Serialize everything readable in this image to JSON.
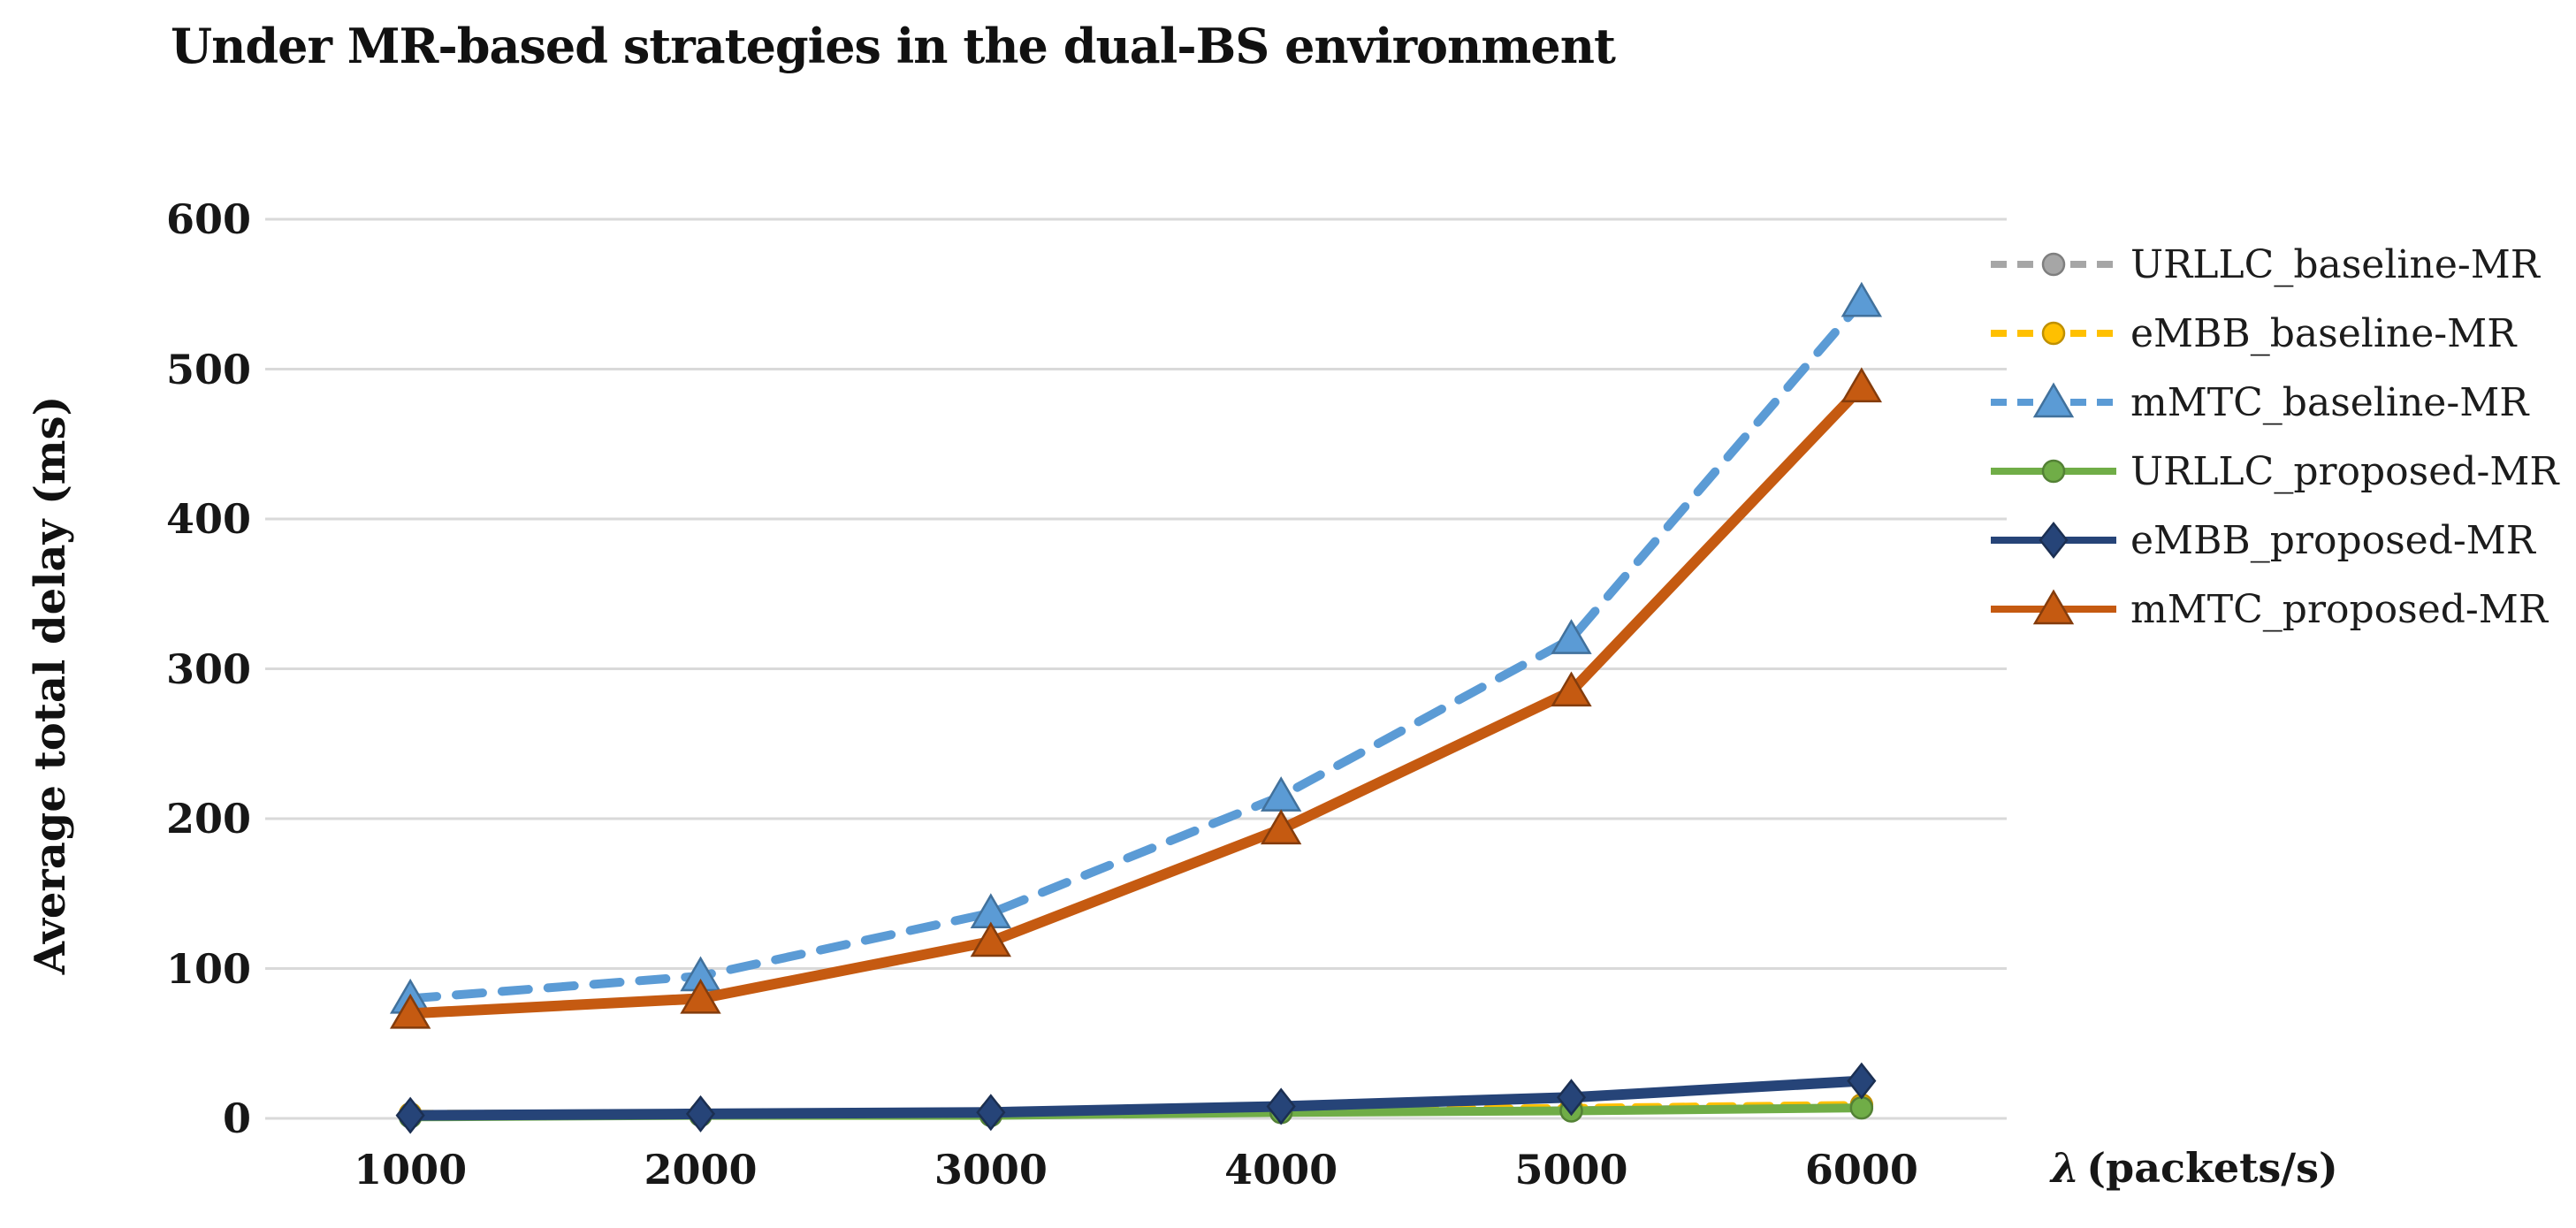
{
  "chart_data": {
    "type": "line",
    "title": "Under MR-based strategies in the dual-BS environment",
    "ylabel": "Average total delay (ms)",
    "xlabel_symbol": "λ",
    "xlabel_unit": "(packets/s)",
    "categories": [
      1000,
      2000,
      3000,
      4000,
      5000,
      6000
    ],
    "y_ticks": [
      0,
      100,
      200,
      300,
      400,
      500,
      600
    ],
    "ylim": [
      0,
      600
    ],
    "grid": "horizontal",
    "legend_position": "right",
    "colors": {
      "grid": "#d9d9d9",
      "text": "#171717",
      "background": "#ffffff"
    },
    "series": [
      {
        "name": "URLLC_baseline-MR",
        "color": "#a6a6a6",
        "marker_stroke": "#7f7f7f",
        "dashed": true,
        "marker": "circle",
        "values": [
          2,
          2,
          3,
          4,
          6,
          8
        ]
      },
      {
        "name": "eMBB_baseline-MR",
        "color": "#ffc000",
        "marker_stroke": "#bf9000",
        "dashed": true,
        "marker": "circle",
        "values": [
          3,
          3,
          4,
          5,
          7,
          9
        ]
      },
      {
        "name": "mMTC_baseline-MR",
        "color": "#5b9bd5",
        "marker_stroke": "#41719c",
        "dashed": true,
        "marker": "triangle",
        "values": [
          80,
          95,
          137,
          215,
          320,
          545
        ]
      },
      {
        "name": "URLLC_proposed-MR",
        "color": "#70ad47",
        "marker_stroke": "#538135",
        "dashed": false,
        "marker": "circle",
        "values": [
          1,
          2,
          2,
          4,
          5,
          7
        ]
      },
      {
        "name": "eMBB_proposed-MR",
        "color": "#264478",
        "marker_stroke": "#1b2f52",
        "dashed": false,
        "marker": "diamond",
        "values": [
          2,
          3,
          4,
          8,
          14,
          25
        ]
      },
      {
        "name": "mMTC_proposed-MR",
        "color": "#c55a11",
        "marker_stroke": "#843c0c",
        "dashed": false,
        "marker": "triangle",
        "values": [
          70,
          80,
          118,
          193,
          285,
          488
        ]
      }
    ]
  }
}
